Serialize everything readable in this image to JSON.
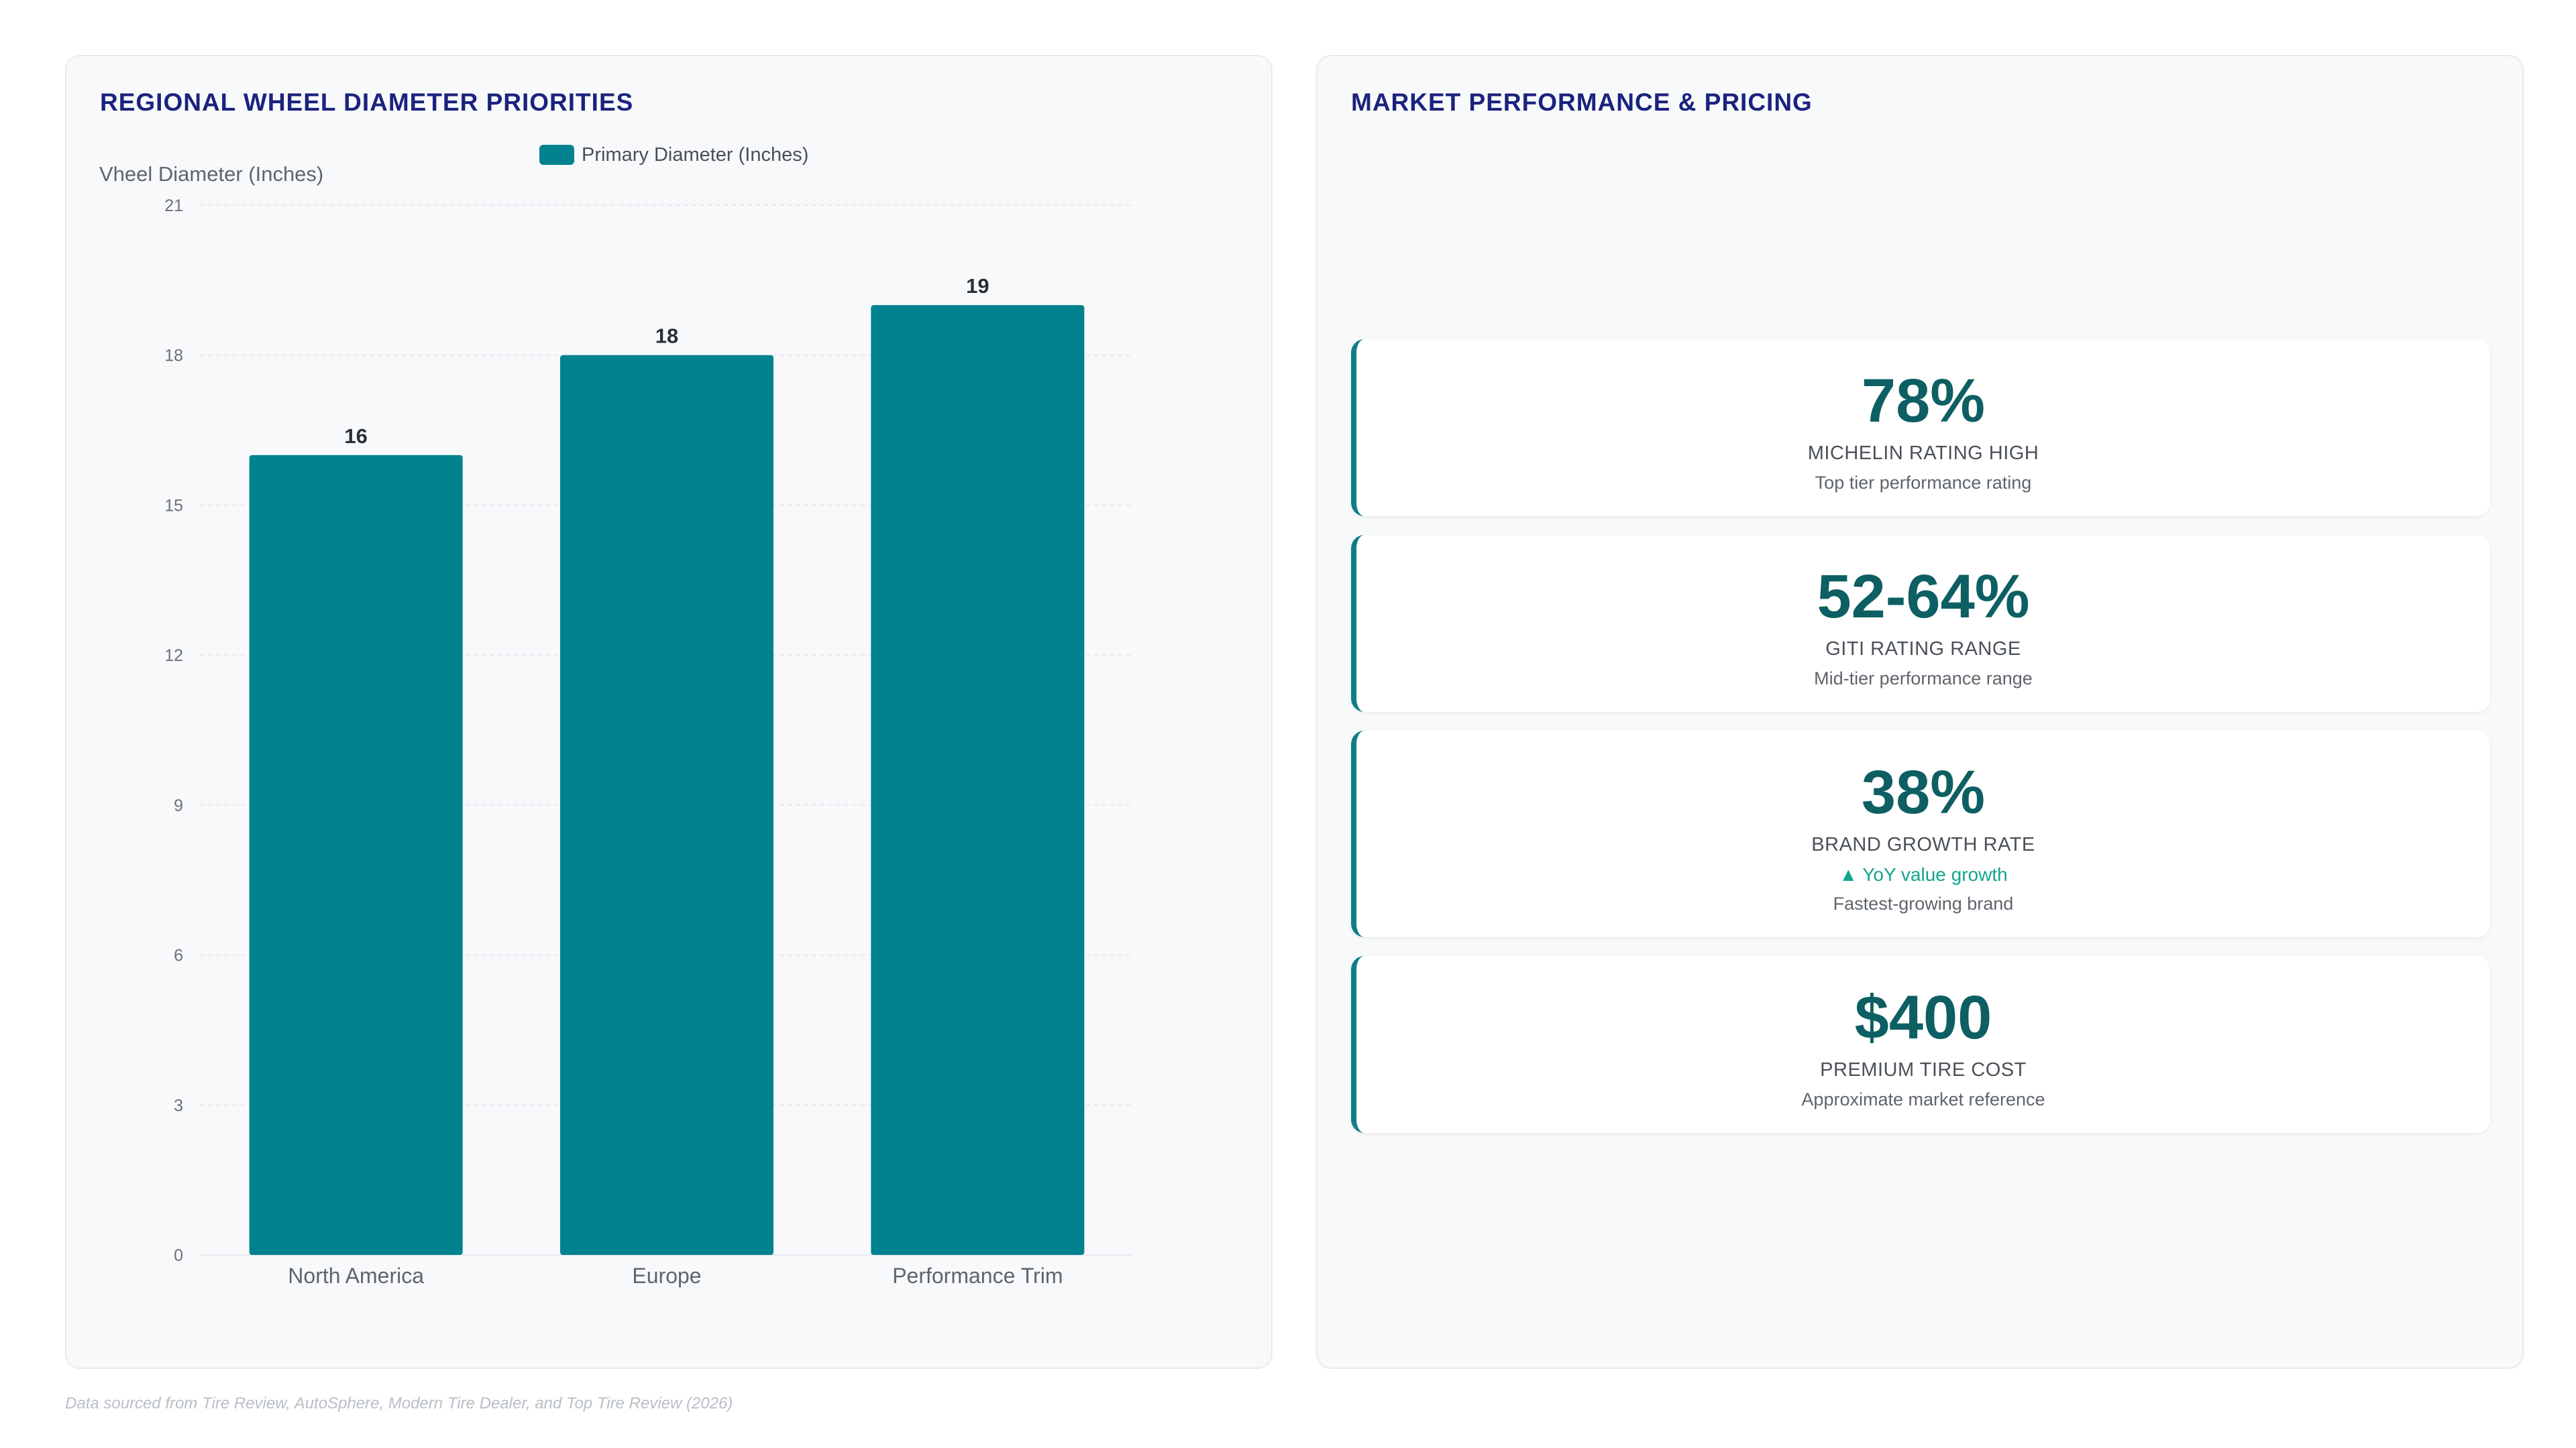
{
  "chart_panel": {
    "title": "REGIONAL WHEEL DIAMETER PRIORITIES"
  },
  "chart_data": {
    "type": "bar",
    "categories": [
      "North America",
      "Europe",
      "Performance Trim"
    ],
    "series": [
      {
        "name": "Primary Diameter (Inches)",
        "values": [
          16,
          18,
          19
        ],
        "color": "#00838f"
      }
    ],
    "ylabel": "Vheel Diameter (Inches)",
    "xlabel": "",
    "ylim": [
      0,
      21
    ],
    "yticks": [
      0,
      3,
      6,
      9,
      12,
      15,
      18,
      21
    ],
    "data_labels": true,
    "grid": true,
    "legend_position": "top-center"
  },
  "kpi_panel": {
    "title": "MARKET PERFORMANCE & PRICING",
    "cards": [
      {
        "value": "78%",
        "label": "MICHELIN RATING HIGH",
        "description": "Top tier performance rating"
      },
      {
        "value": "52-64%",
        "label": "GITI RATING RANGE",
        "description": "Mid-tier performance range"
      },
      {
        "value": "38%",
        "label": "BRAND GROWTH RATE",
        "trend": "▲ YoY value growth",
        "description": "Fastest-growing brand"
      },
      {
        "value": "$400",
        "label": "PREMIUM TIRE COST",
        "description": "Approximate market reference"
      }
    ]
  },
  "footer": {
    "source": "Data sourced from Tire Review, AutoSphere, Modern Tire Dealer, and Top Tire Review (2026)"
  },
  "colors": {
    "accent": "#0f7d86",
    "bar": "#00838f",
    "title": "#1a237e",
    "kpi_value": "#0d5f63",
    "trend_positive": "#12a58f"
  }
}
